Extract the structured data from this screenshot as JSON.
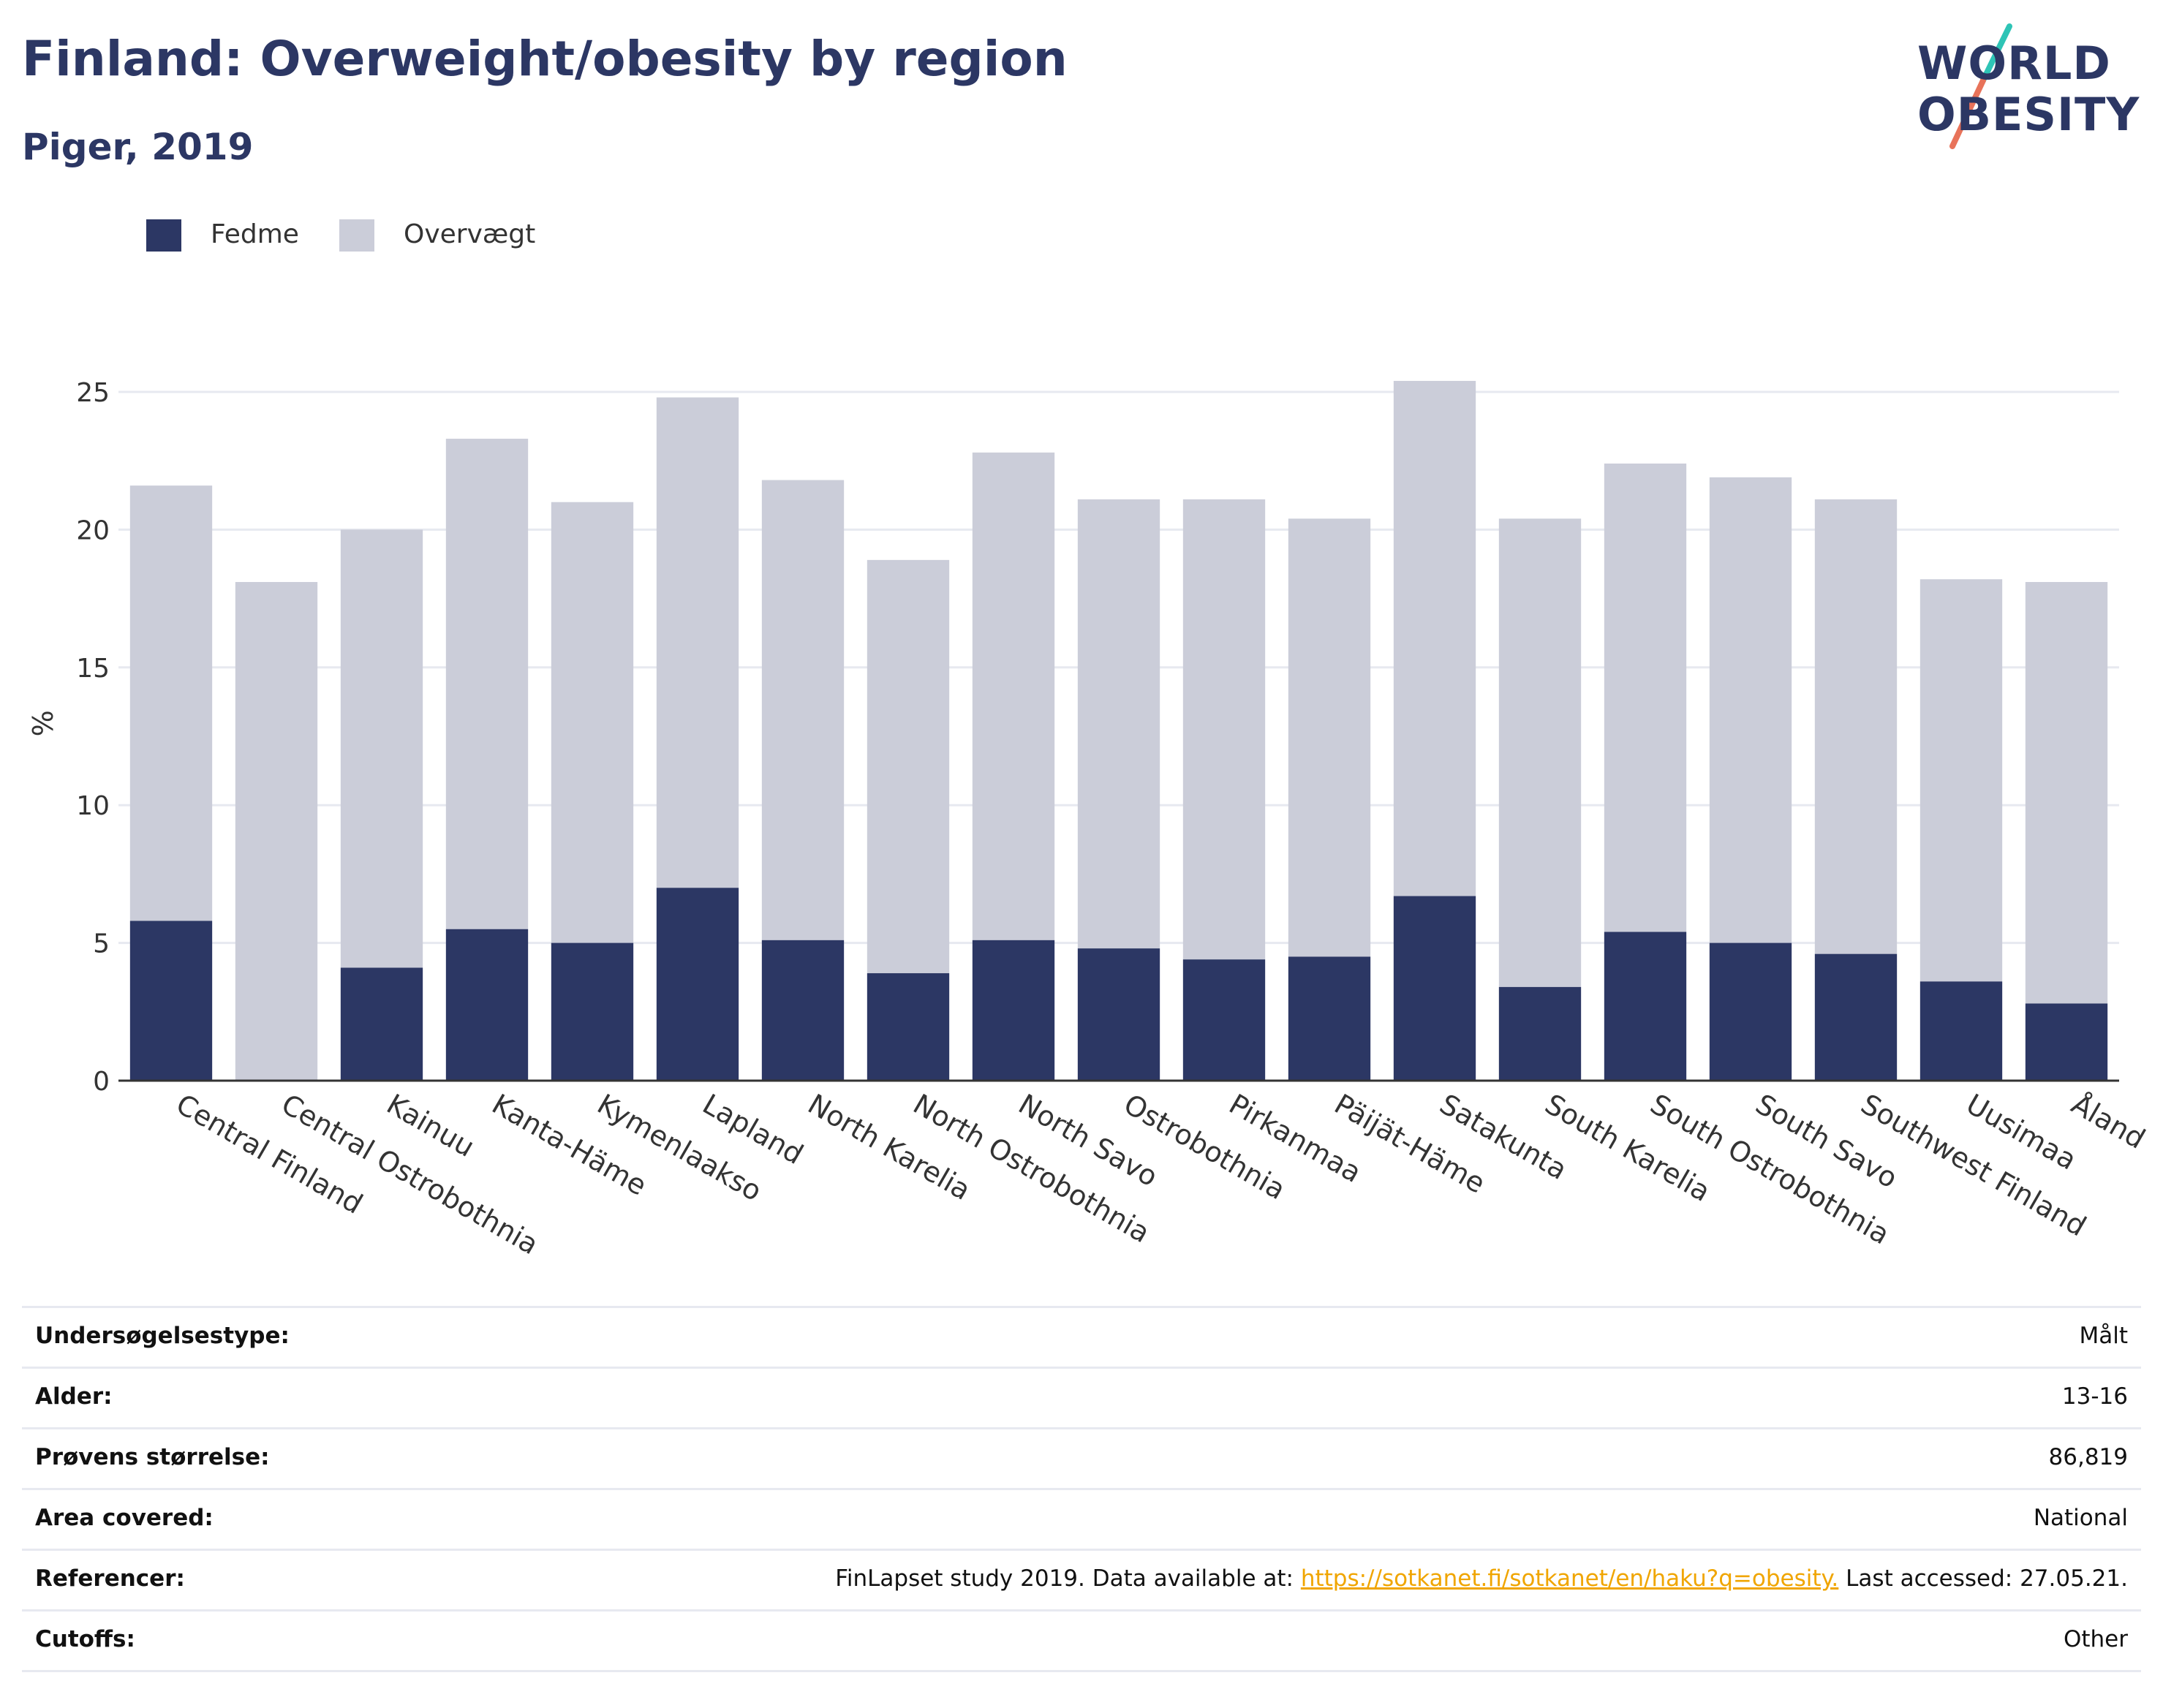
{
  "header": {
    "title": "Finland: Overweight/obesity by region",
    "subtitle": "Piger, 2019"
  },
  "logo": {
    "line1": "WORLD",
    "line2": "OBESITY",
    "slash_color_top": "#2ec4b6",
    "slash_color_bottom": "#e8735a"
  },
  "colors": {
    "fedme": "#2c3764",
    "overvaegt": "#cbcdd9",
    "grid": "#e7e9f0",
    "axis": "#333333",
    "link": "#f0a500"
  },
  "legend": [
    {
      "label": "Fedme",
      "color": "#2c3764"
    },
    {
      "label": "Overvægt",
      "color": "#cbcdd9"
    }
  ],
  "chart_data": {
    "type": "bar",
    "stacked": true,
    "ylabel": "%",
    "ylim": [
      0,
      27
    ],
    "yticks": [
      0,
      5,
      10,
      15,
      20,
      25
    ],
    "grid": true,
    "legend_position": "top-left",
    "categories": [
      "Central Finland",
      "Central Ostrobothnia",
      "Kainuu",
      "Kanta-Häme",
      "Kymenlaakso",
      "Lapland",
      "North Karelia",
      "North Ostrobothnia",
      "North Savo",
      "Ostrobothnia",
      "Pirkanmaa",
      "Päijät-Häme",
      "Satakunta",
      "South Karelia",
      "South Ostrobothnia",
      "South Savo",
      "Southwest Finland",
      "Uusimaa",
      "Åland"
    ],
    "series": [
      {
        "name": "Fedme",
        "values": [
          5.8,
          0,
          4.1,
          5.5,
          5.0,
          7.0,
          5.1,
          3.9,
          5.1,
          4.8,
          4.4,
          4.5,
          6.7,
          3.4,
          5.4,
          5.0,
          4.6,
          3.6,
          2.8
        ]
      },
      {
        "name": "Overvægt",
        "values": [
          15.8,
          18.1,
          15.9,
          17.8,
          16.0,
          17.8,
          16.7,
          15.0,
          17.7,
          16.3,
          16.7,
          15.9,
          18.7,
          17.0,
          17.0,
          16.9,
          16.5,
          14.6,
          15.3
        ]
      }
    ]
  },
  "info": [
    {
      "key": "Undersøgelsestype:",
      "value": "Målt"
    },
    {
      "key": "Alder:",
      "value": "13-16"
    },
    {
      "key": "Prøvens størrelse:",
      "value": "86,819"
    },
    {
      "key": "Area covered:",
      "value": "National"
    },
    {
      "key": "Referencer:",
      "value_prefix": "FinLapset study 2019. Data available at: ",
      "value_link": "https://sotkanet.fi/sotkanet/en/haku?q=obesity.",
      "value_suffix": " Last accessed: 27.05.21."
    },
    {
      "key": "Cutoffs:",
      "value": "Other"
    }
  ]
}
